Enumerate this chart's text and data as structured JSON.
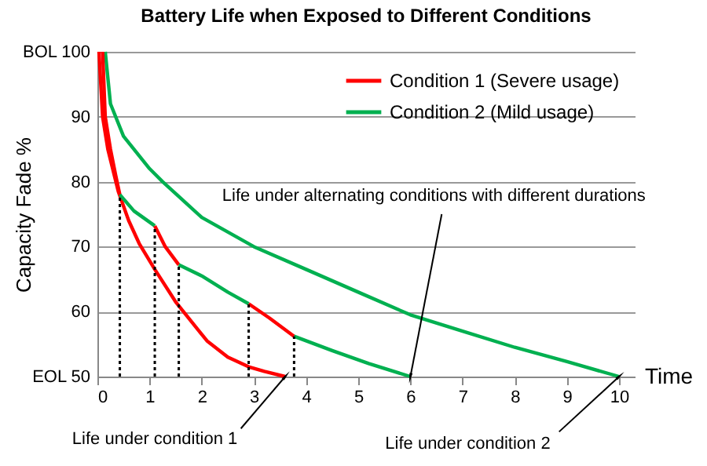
{
  "chart_data": {
    "type": "line",
    "title": "Battery Life  when Exposed to Different Conditions",
    "xlabel": "Time",
    "ylabel": "Capacity Fade %",
    "xlim": [
      0,
      10.3
    ],
    "xticks": [
      0,
      1,
      2,
      3,
      4,
      5,
      6,
      7,
      8,
      9,
      10
    ],
    "ylim": [
      50,
      100
    ],
    "yticks": [
      {
        "value": 50,
        "label": "EOL  50"
      },
      60,
      70,
      80,
      90,
      {
        "value": 100,
        "label": "BOL  100"
      }
    ],
    "grid": "y",
    "legend": "top right",
    "marker": "none",
    "series": [
      {
        "name": "Condition 1  (Severe usage)",
        "color": "#ff0000",
        "x": [
          0.03,
          0.1,
          0.2,
          0.4,
          0.6,
          0.8,
          1.1,
          1.5,
          2.1,
          2.5,
          2.9,
          3.2,
          3.6
        ],
        "values": [
          100,
          90,
          85,
          78.5,
          74,
          70.5,
          66.5,
          61.5,
          55.5,
          53,
          51.5,
          50.8,
          50
        ]
      },
      {
        "name": "Condition 2  (Mild usage)",
        "color": "#00b050",
        "x": [
          0.15,
          0.25,
          0.5,
          1,
          1.25,
          2,
          3,
          4,
          5,
          6,
          7,
          8,
          9,
          10
        ],
        "values": [
          100,
          92,
          87,
          82,
          80,
          74.5,
          70,
          66.5,
          63,
          59.5,
          57,
          54.5,
          52.3,
          50
        ]
      },
      {
        "color": "#ff0000",
        "x": [
          0.1,
          0.15,
          0.25,
          0.35,
          0.43
        ],
        "values": [
          100,
          90,
          85,
          81,
          78
        ]
      },
      {
        "color": "#00b050",
        "x": [
          0.43,
          0.7,
          1.1
        ],
        "values": [
          78,
          75.5,
          73.2
        ]
      },
      {
        "color": "#ff0000",
        "x": [
          1.1,
          1.3,
          1.56
        ],
        "values": [
          73.2,
          70,
          67.2
        ]
      },
      {
        "color": "#00b050",
        "x": [
          1.56,
          2,
          2.5,
          2.9
        ],
        "values": [
          67.2,
          65.5,
          63,
          61.2
        ]
      },
      {
        "color": "#ff0000",
        "x": [
          2.9,
          3.3,
          3.77
        ],
        "values": [
          61.2,
          59,
          56.2
        ]
      },
      {
        "color": "#00b050",
        "x": [
          3.77,
          4.5,
          5.2,
          6
        ],
        "values": [
          56.2,
          54,
          52,
          50
        ]
      },
      {
        "color": "#000000",
        "line_style": "dotted",
        "x": [
          0.43,
          0.43
        ],
        "values": [
          50,
          78
        ]
      },
      {
        "color": "#000000",
        "line_style": "dotted",
        "x": [
          1.1,
          1.1
        ],
        "values": [
          50,
          73.2
        ]
      },
      {
        "color": "#000000",
        "line_style": "dotted",
        "x": [
          1.56,
          1.56
        ],
        "values": [
          50,
          67.2
        ]
      },
      {
        "color": "#000000",
        "line_style": "dotted",
        "x": [
          2.9,
          2.9
        ],
        "values": [
          50,
          61.2
        ]
      },
      {
        "color": "#000000",
        "line_style": "dotted",
        "x": [
          3.77,
          3.77
        ],
        "values": [
          50,
          56.2
        ]
      }
    ],
    "annotations": [
      {
        "text": "Life under condition 1",
        "x": 3.6,
        "y": 50
      },
      {
        "text": "Life under condition 2",
        "x": 10,
        "y": 50
      },
      {
        "text": "Life under alternating conditions with different durations",
        "x": 6,
        "y": 50
      }
    ]
  }
}
